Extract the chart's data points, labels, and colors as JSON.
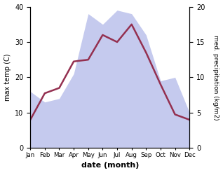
{
  "months": [
    "Jan",
    "Feb",
    "Mar",
    "Apr",
    "May",
    "Jun",
    "Jul",
    "Aug",
    "Sep",
    "Oct",
    "Nov",
    "Dec"
  ],
  "month_x": [
    1,
    2,
    3,
    4,
    5,
    6,
    7,
    8,
    9,
    10,
    11,
    12
  ],
  "temp": [
    8.0,
    15.5,
    17.0,
    24.5,
    25.0,
    32.0,
    30.0,
    35.0,
    27.0,
    18.0,
    9.5,
    8.0
  ],
  "precip_left_scale": [
    16,
    13,
    14,
    21,
    38,
    35,
    39,
    38,
    32,
    19,
    20,
    10
  ],
  "temp_color": "#943050",
  "precip_fill_color": "#c5caee",
  "xlabel": "date (month)",
  "ylabel_left": "max temp (C)",
  "ylabel_right": "med. precipitation (kg/m2)",
  "ylim_left": [
    0,
    40
  ],
  "ylim_right": [
    0,
    20
  ],
  "yticks_left": [
    0,
    10,
    20,
    30,
    40
  ],
  "yticks_right": [
    0,
    5,
    10,
    15,
    20
  ],
  "background_color": "#ffffff",
  "line_width": 1.8
}
